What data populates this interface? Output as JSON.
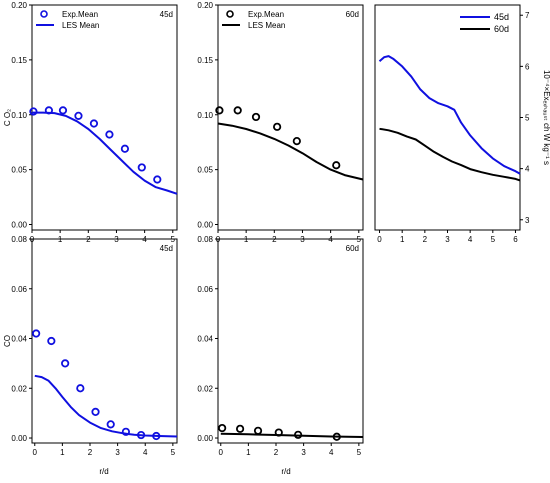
{
  "figure": {
    "xlabel_left": "r/d",
    "xlabel_mid": "r/d"
  },
  "chart_data": [
    {
      "id": "co2-45d",
      "type": "line",
      "panel_label": "45d",
      "ylabel": "C O₂",
      "xlim": [
        0,
        5.15
      ],
      "ylim": [
        -0.005,
        0.2
      ],
      "xticks": [
        "0",
        "1",
        "2",
        "3",
        "4",
        "5"
      ],
      "yticks": [
        "0.00",
        "0.05",
        "0.10",
        "0.15",
        "0.20"
      ],
      "legend": {
        "position": "top-left",
        "entries": [
          "Exp.Mean",
          "LES Mean"
        ]
      },
      "series": [
        {
          "name": "Exp.Mean",
          "kind": "markers",
          "color": "#1010e0",
          "x": [
            0.05,
            0.6,
            1.1,
            1.65,
            2.2,
            2.75,
            3.3,
            3.9,
            4.45
          ],
          "y": [
            0.103,
            0.104,
            0.104,
            0.099,
            0.092,
            0.082,
            0.069,
            0.052,
            0.041
          ]
        },
        {
          "name": "LES Mean",
          "kind": "line",
          "color": "#1010e0",
          "x": [
            0,
            0.4,
            0.8,
            1.2,
            1.6,
            2.0,
            2.4,
            2.8,
            3.2,
            3.6,
            4.0,
            4.4,
            4.8,
            5.15
          ],
          "y": [
            0.102,
            0.102,
            0.1015,
            0.099,
            0.094,
            0.087,
            0.078,
            0.068,
            0.058,
            0.048,
            0.04,
            0.034,
            0.031,
            0.028
          ]
        }
      ]
    },
    {
      "id": "co2-60d",
      "type": "line",
      "panel_label": "60d",
      "ylabel": "",
      "xlim": [
        0,
        5.15
      ],
      "ylim": [
        -0.005,
        0.2
      ],
      "xticks": [
        "0",
        "1",
        "2",
        "3",
        "4",
        "5"
      ],
      "yticks": [
        "0.00",
        "0.05",
        "0.10",
        "0.15",
        "0.20"
      ],
      "legend": {
        "position": "top-left",
        "entries": [
          "Exp.Mean",
          "LES Mean"
        ]
      },
      "series": [
        {
          "name": "Exp.Mean",
          "kind": "markers",
          "color": "#000000",
          "x": [
            0.05,
            0.7,
            1.35,
            2.1,
            2.8,
            4.2
          ],
          "y": [
            0.104,
            0.104,
            0.098,
            0.089,
            0.076,
            0.054
          ]
        },
        {
          "name": "LES Mean",
          "kind": "line",
          "color": "#000000",
          "x": [
            0,
            0.5,
            1.0,
            1.5,
            2.0,
            2.5,
            3.0,
            3.5,
            4.0,
            4.5,
            5.15
          ],
          "y": [
            0.092,
            0.09,
            0.087,
            0.083,
            0.078,
            0.072,
            0.065,
            0.057,
            0.05,
            0.045,
            0.041
          ]
        }
      ]
    },
    {
      "id": "exergy",
      "type": "line",
      "panel_label": "",
      "ylabel": "10⁻⁴×Exₑₓₕₐᵤₛₜ ch W kg⁻¹ s",
      "xlim": [
        -0.2,
        6.2
      ],
      "ylim": [
        2.8,
        7.2
      ],
      "xticks": [
        "0",
        "1",
        "2",
        "3",
        "4",
        "5",
        "6"
      ],
      "yticks": [
        "3",
        "4",
        "5",
        "6",
        "7"
      ],
      "legend": {
        "position": "top-right",
        "entries": [
          "45d",
          "60d"
        ]
      },
      "series": [
        {
          "name": "45d",
          "kind": "line",
          "color": "#1010e0",
          "x": [
            0,
            0.2,
            0.4,
            0.6,
            1.0,
            1.4,
            1.8,
            2.2,
            2.6,
            3.0,
            3.3,
            3.6,
            4.0,
            4.5,
            5.0,
            5.5,
            6.0,
            6.2
          ],
          "y": [
            6.1,
            6.18,
            6.2,
            6.15,
            6.0,
            5.8,
            5.55,
            5.38,
            5.28,
            5.22,
            5.15,
            4.9,
            4.65,
            4.4,
            4.2,
            4.05,
            3.95,
            3.9
          ]
        },
        {
          "name": "60d",
          "kind": "line",
          "color": "#000000",
          "x": [
            0,
            0.4,
            0.8,
            1.2,
            1.6,
            2.0,
            2.4,
            2.8,
            3.2,
            3.6,
            4.0,
            4.5,
            5.0,
            5.5,
            6.0,
            6.2
          ],
          "y": [
            4.78,
            4.75,
            4.7,
            4.63,
            4.57,
            4.45,
            4.33,
            4.23,
            4.14,
            4.07,
            3.99,
            3.93,
            3.88,
            3.84,
            3.8,
            3.77
          ]
        }
      ]
    },
    {
      "id": "co-45d",
      "type": "line",
      "panel_label": "45d",
      "ylabel": "CO",
      "xlim": [
        -0.1,
        5.15
      ],
      "ylim": [
        -0.002,
        0.08
      ],
      "xticks": [
        "0",
        "1",
        "2",
        "3",
        "4",
        "5"
      ],
      "yticks": [
        "0.00",
        "0.02",
        "0.04",
        "0.06",
        "0.08"
      ],
      "series": [
        {
          "name": "Exp.Mean",
          "kind": "markers",
          "color": "#1010e0",
          "x": [
            0.05,
            0.6,
            1.1,
            1.65,
            2.2,
            2.75,
            3.3,
            3.85,
            4.4
          ],
          "y": [
            0.042,
            0.039,
            0.03,
            0.02,
            0.0105,
            0.0055,
            0.0025,
            0.0012,
            0.0008
          ]
        },
        {
          "name": "LES Mean",
          "kind": "line",
          "color": "#1010e0",
          "x": [
            0,
            0.25,
            0.5,
            0.75,
            1.0,
            1.3,
            1.6,
            2.0,
            2.4,
            2.8,
            3.2,
            3.6,
            4.0,
            4.5,
            5.15
          ],
          "y": [
            0.025,
            0.0245,
            0.023,
            0.02,
            0.0165,
            0.0125,
            0.0092,
            0.0062,
            0.004,
            0.0027,
            0.0019,
            0.0013,
            0.001,
            0.0008,
            0.0006
          ]
        }
      ]
    },
    {
      "id": "co-60d",
      "type": "line",
      "panel_label": "60d",
      "ylabel": "",
      "xlim": [
        -0.1,
        5.15
      ],
      "ylim": [
        -0.002,
        0.08
      ],
      "xticks": [
        "0",
        "1",
        "2",
        "3",
        "4",
        "5"
      ],
      "yticks": [
        "0.00",
        "0.02",
        "0.04",
        "0.06",
        "0.08"
      ],
      "series": [
        {
          "name": "Exp.Mean",
          "kind": "markers",
          "color": "#000000",
          "x": [
            0.05,
            0.7,
            1.35,
            2.1,
            2.8,
            4.2
          ],
          "y": [
            0.004,
            0.0037,
            0.0029,
            0.0022,
            0.0013,
            0.0005
          ]
        },
        {
          "name": "LES Mean",
          "kind": "line",
          "color": "#000000",
          "x": [
            0,
            1.0,
            2.0,
            3.0,
            4.0,
            5.15
          ],
          "y": [
            0.0017,
            0.0015,
            0.0012,
            0.0009,
            0.0006,
            0.0004
          ]
        }
      ]
    }
  ]
}
